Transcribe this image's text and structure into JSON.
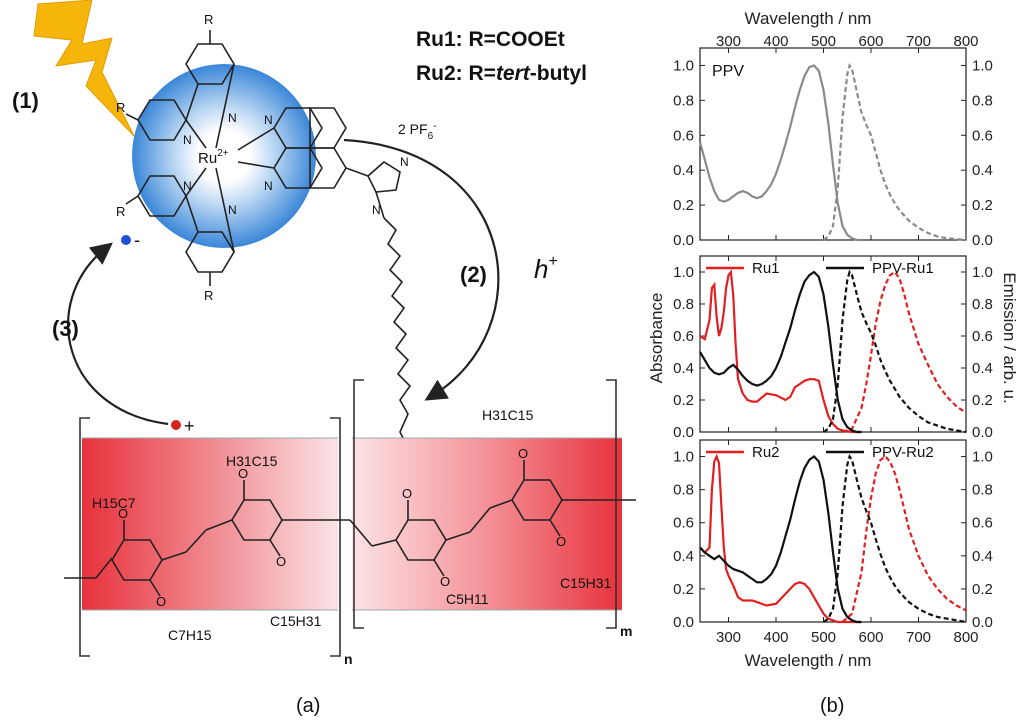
{
  "scheme": {
    "step1": "(1)",
    "step2": "(2)",
    "step3": "(3)",
    "ru1_legend": "Ru1: R=COOEt",
    "ru2_prefix": "Ru2: R=",
    "ru2_italic": "tert",
    "ru2_suffix": "-butyl",
    "counterion": "2 PF",
    "counterion_sub": "6",
    "counterion_sup": "-",
    "metal": "Ru",
    "metal_sup": "2+",
    "hole": "h",
    "hole_sup": "+",
    "electron": "-",
    "hole_dot": "+",
    "sub_n": "n",
    "sub_m": "m",
    "R": "R",
    "N": "N",
    "O": "O",
    "chains": {
      "c7_top": "H15C7",
      "c15_top": "H31C15",
      "c7_bottom": "C7H15",
      "c15_bottom": "C15H31",
      "c15_right_top": "H31C15",
      "c5_bottom": "C5H11",
      "c15_right_bottom": "C15H31"
    },
    "colors": {
      "bolt": "#f5b50a",
      "sphere": "#3a86d8",
      "band": "#e8323c",
      "electron": "#1f4fd6",
      "hole": "#d9221a"
    }
  },
  "panel_labels": {
    "a": "(a)",
    "b": "(b)"
  },
  "axes": {
    "top_xlabel": "Wavelength / nm",
    "bottom_xlabel": "Wavelength / nm",
    "ylabel_left": "Absorbance",
    "ylabel_right": "Emission / arb. u.",
    "x_ticks_top": [
      "300",
      "400",
      "500",
      "600",
      "700",
      "800"
    ],
    "x_ticks_bottom": [
      "300",
      "400",
      "500",
      "600",
      "700",
      "800"
    ],
    "y_ticks": [
      "0.0",
      "0.2",
      "0.4",
      "0.6",
      "0.8",
      "1.0"
    ]
  },
  "chart_data": [
    {
      "type": "line",
      "title": "PPV",
      "xlim": [
        240,
        800
      ],
      "ylim": [
        0,
        1.1
      ],
      "series": [
        {
          "name": "",
          "kind": "absorption",
          "color": "#8a8a8a",
          "dash": "solid",
          "x": [
            240,
            250,
            260,
            270,
            280,
            290,
            300,
            310,
            320,
            330,
            340,
            350,
            360,
            370,
            380,
            390,
            400,
            410,
            420,
            430,
            440,
            450,
            460,
            470,
            480,
            490,
            500,
            510,
            520,
            530,
            540,
            550,
            560,
            570,
            580
          ],
          "y": [
            0.56,
            0.46,
            0.36,
            0.28,
            0.23,
            0.22,
            0.23,
            0.25,
            0.27,
            0.28,
            0.27,
            0.25,
            0.24,
            0.25,
            0.28,
            0.32,
            0.38,
            0.46,
            0.55,
            0.65,
            0.76,
            0.86,
            0.94,
            0.99,
            1.0,
            0.97,
            0.86,
            0.67,
            0.43,
            0.21,
            0.08,
            0.03,
            0.01,
            0.0,
            0.0
          ]
        },
        {
          "name": "",
          "kind": "emission",
          "color": "#8a8a8a",
          "dash": "dashed",
          "x": [
            500,
            510,
            520,
            530,
            540,
            550,
            555,
            560,
            570,
            580,
            590,
            600,
            610,
            620,
            630,
            640,
            650,
            660,
            680,
            700,
            720,
            740,
            760,
            780,
            800
          ],
          "y": [
            0.0,
            0.02,
            0.08,
            0.3,
            0.7,
            0.95,
            1.0,
            0.98,
            0.85,
            0.73,
            0.66,
            0.6,
            0.5,
            0.4,
            0.32,
            0.26,
            0.21,
            0.17,
            0.11,
            0.07,
            0.04,
            0.02,
            0.01,
            0.005,
            0.0
          ]
        }
      ]
    },
    {
      "type": "line",
      "xlim": [
        240,
        800
      ],
      "ylim": [
        0,
        1.1
      ],
      "series": [
        {
          "name": "Ru1",
          "kind": "absorption",
          "color": "#e02020",
          "dash": "solid",
          "x": [
            240,
            250,
            260,
            265,
            270,
            275,
            280,
            285,
            290,
            295,
            300,
            305,
            310,
            315,
            320,
            330,
            340,
            350,
            360,
            380,
            400,
            420,
            430,
            440,
            450,
            460,
            470,
            480,
            490,
            500,
            510,
            520,
            530,
            540,
            560,
            580
          ],
          "y": [
            0.6,
            0.58,
            0.7,
            0.9,
            0.92,
            0.72,
            0.6,
            0.65,
            0.75,
            0.9,
            0.98,
            1.0,
            0.85,
            0.55,
            0.33,
            0.24,
            0.2,
            0.19,
            0.19,
            0.24,
            0.23,
            0.2,
            0.22,
            0.28,
            0.3,
            0.32,
            0.33,
            0.33,
            0.32,
            0.2,
            0.1,
            0.05,
            0.02,
            0.01,
            0.0,
            0.0
          ]
        },
        {
          "name": "Ru1",
          "kind": "emission",
          "color": "#e02020",
          "dash": "dashed",
          "x": [
            540,
            560,
            580,
            590,
            600,
            610,
            620,
            630,
            640,
            650,
            660,
            670,
            680,
            700,
            720,
            740,
            760,
            780,
            800
          ],
          "y": [
            0.0,
            0.02,
            0.15,
            0.3,
            0.48,
            0.68,
            0.82,
            0.92,
            0.98,
            1.0,
            0.96,
            0.86,
            0.74,
            0.55,
            0.42,
            0.3,
            0.22,
            0.16,
            0.12
          ]
        },
        {
          "name": "PPV-Ru1",
          "kind": "absorption",
          "color": "#111111",
          "dash": "solid",
          "x": [
            240,
            250,
            260,
            270,
            280,
            290,
            300,
            310,
            320,
            330,
            340,
            350,
            360,
            370,
            380,
            390,
            400,
            410,
            420,
            430,
            440,
            450,
            460,
            470,
            480,
            490,
            500,
            510,
            520,
            530,
            540,
            550,
            560,
            570,
            580
          ],
          "y": [
            0.5,
            0.45,
            0.4,
            0.37,
            0.36,
            0.37,
            0.4,
            0.42,
            0.39,
            0.35,
            0.32,
            0.3,
            0.29,
            0.3,
            0.32,
            0.35,
            0.4,
            0.47,
            0.56,
            0.65,
            0.76,
            0.86,
            0.94,
            0.98,
            1.0,
            0.97,
            0.86,
            0.66,
            0.42,
            0.2,
            0.08,
            0.03,
            0.01,
            0.0,
            0.0
          ]
        },
        {
          "name": "PPV-Ru1",
          "kind": "emission",
          "color": "#111111",
          "dash": "dashed",
          "x": [
            500,
            510,
            520,
            530,
            540,
            550,
            555,
            560,
            570,
            580,
            590,
            600,
            610,
            620,
            630,
            640,
            650,
            660,
            680,
            700,
            720,
            740,
            760,
            780,
            800
          ],
          "y": [
            0.0,
            0.02,
            0.08,
            0.3,
            0.7,
            0.95,
            1.0,
            0.98,
            0.86,
            0.75,
            0.68,
            0.62,
            0.54,
            0.45,
            0.38,
            0.32,
            0.27,
            0.22,
            0.15,
            0.1,
            0.06,
            0.04,
            0.02,
            0.01,
            0.0
          ]
        }
      ]
    },
    {
      "type": "line",
      "xlim": [
        240,
        800
      ],
      "ylim": [
        0,
        1.1
      ],
      "series": [
        {
          "name": "Ru2",
          "kind": "absorption",
          "color": "#e02020",
          "dash": "solid",
          "x": [
            240,
            250,
            260,
            265,
            270,
            275,
            280,
            285,
            290,
            295,
            300,
            310,
            320,
            330,
            340,
            350,
            360,
            380,
            400,
            420,
            440,
            450,
            460,
            470,
            480,
            490,
            500,
            510,
            520,
            530,
            540,
            560,
            580
          ],
          "y": [
            0.45,
            0.42,
            0.45,
            0.8,
            0.97,
            1.0,
            0.96,
            0.7,
            0.45,
            0.32,
            0.28,
            0.22,
            0.15,
            0.13,
            0.13,
            0.13,
            0.12,
            0.1,
            0.11,
            0.17,
            0.23,
            0.24,
            0.23,
            0.2,
            0.15,
            0.1,
            0.05,
            0.02,
            0.01,
            0.0,
            0.0,
            0.0,
            0.0
          ]
        },
        {
          "name": "Ru2",
          "kind": "emission",
          "color": "#e02020",
          "dash": "dashed",
          "x": [
            540,
            560,
            580,
            590,
            600,
            610,
            620,
            630,
            640,
            650,
            660,
            670,
            680,
            700,
            720,
            740,
            760,
            780,
            800
          ],
          "y": [
            0.0,
            0.05,
            0.3,
            0.55,
            0.75,
            0.9,
            0.98,
            1.0,
            0.97,
            0.9,
            0.8,
            0.68,
            0.56,
            0.4,
            0.28,
            0.2,
            0.14,
            0.1,
            0.07
          ]
        },
        {
          "name": "PPV-Ru2",
          "kind": "absorption",
          "color": "#111111",
          "dash": "solid",
          "x": [
            240,
            250,
            260,
            270,
            280,
            290,
            300,
            310,
            320,
            330,
            340,
            350,
            360,
            370,
            380,
            390,
            400,
            410,
            420,
            430,
            440,
            450,
            460,
            470,
            480,
            490,
            500,
            510,
            520,
            530,
            540,
            550,
            560,
            570,
            580
          ],
          "y": [
            0.45,
            0.42,
            0.4,
            0.38,
            0.4,
            0.37,
            0.34,
            0.32,
            0.31,
            0.3,
            0.28,
            0.26,
            0.24,
            0.24,
            0.26,
            0.29,
            0.34,
            0.42,
            0.52,
            0.62,
            0.74,
            0.85,
            0.93,
            0.98,
            1.0,
            0.97,
            0.86,
            0.66,
            0.42,
            0.2,
            0.08,
            0.03,
            0.01,
            0.0,
            0.0
          ]
        },
        {
          "name": "PPV-Ru2",
          "kind": "emission",
          "color": "#111111",
          "dash": "dashed",
          "x": [
            500,
            510,
            520,
            530,
            540,
            550,
            555,
            560,
            570,
            580,
            590,
            600,
            610,
            620,
            630,
            640,
            650,
            660,
            680,
            700,
            720,
            740,
            760,
            780,
            800
          ],
          "y": [
            0.0,
            0.02,
            0.08,
            0.3,
            0.7,
            0.95,
            1.0,
            0.98,
            0.86,
            0.75,
            0.67,
            0.6,
            0.5,
            0.41,
            0.33,
            0.27,
            0.22,
            0.18,
            0.12,
            0.08,
            0.05,
            0.03,
            0.02,
            0.01,
            0.0
          ]
        }
      ]
    }
  ]
}
